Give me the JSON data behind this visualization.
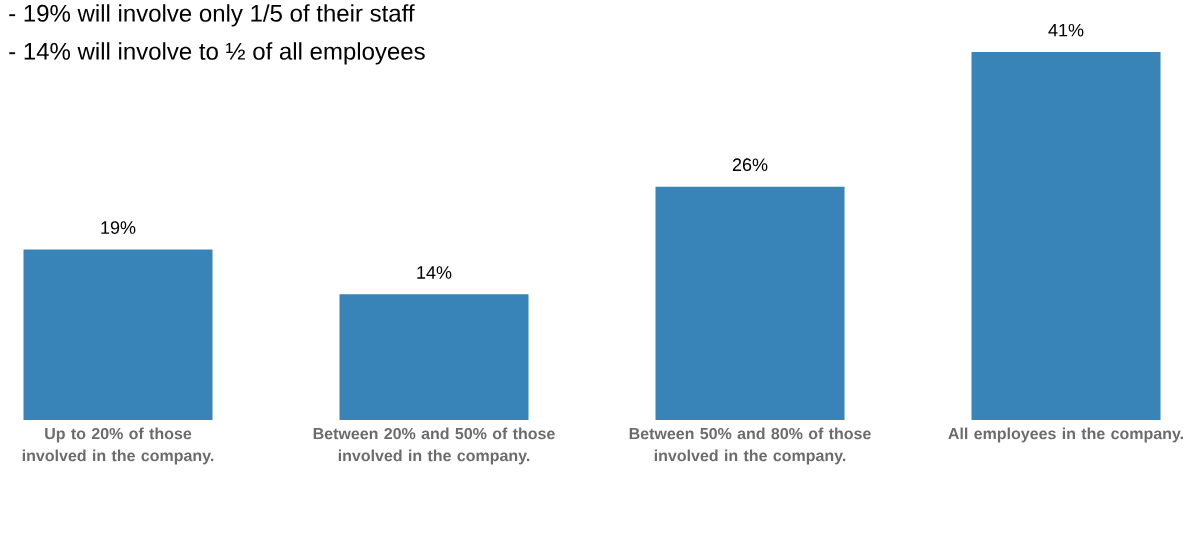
{
  "chart_data": {
    "type": "bar",
    "categories": [
      "Up to 20% of those involved in the company.",
      "Between 20% and 50% of those involved in the company.",
      "Between 50% and 80% of those involved in the company.",
      "All employees in the company."
    ],
    "values": [
      19,
      14,
      26,
      41
    ],
    "value_labels": [
      "19%",
      "14%",
      "26%",
      "41%"
    ],
    "color": "#3884b8",
    "annotations": [
      "- 19% will involve only 1/5 of their staff",
      "- 14% will involve to ½ of all employees"
    ]
  }
}
